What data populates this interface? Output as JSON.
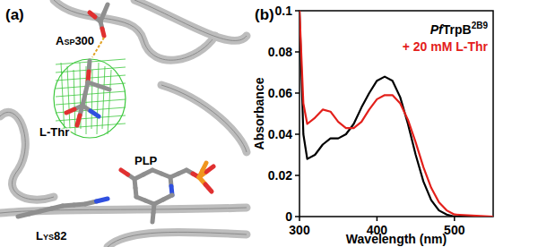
{
  "panel_a": {
    "label": "(a)",
    "residue_labels": [
      "Asp300",
      "L-Thr",
      "PLP",
      "Lys82"
    ]
  },
  "chart_data": {
    "type": "line",
    "title": "(b)",
    "x_label": "Wavelength (nm)",
    "y_label": "Absorbance",
    "x": [
      300,
      305,
      310,
      320,
      330,
      340,
      350,
      360,
      370,
      380,
      390,
      400,
      410,
      420,
      430,
      440,
      450,
      460,
      470,
      480,
      490,
      500,
      550
    ],
    "series": [
      {
        "name": "PfTrpB2B9",
        "color": "#000000",
        "values": [
          0.1,
          0.04,
          0.028,
          0.03,
          0.035,
          0.038,
          0.038,
          0.04,
          0.045,
          0.053,
          0.06,
          0.066,
          0.068,
          0.066,
          0.058,
          0.045,
          0.03,
          0.017,
          0.008,
          0.003,
          0.001,
          0,
          0
        ]
      },
      {
        "name": "+ 20 mM L-Thr",
        "color": "#e3201b",
        "values": [
          0.1,
          0.055,
          0.045,
          0.048,
          0.052,
          0.051,
          0.046,
          0.043,
          0.043,
          0.046,
          0.052,
          0.057,
          0.059,
          0.059,
          0.055,
          0.047,
          0.036,
          0.024,
          0.014,
          0.007,
          0.003,
          0.001,
          0
        ]
      }
    ],
    "xlim": [
      300,
      550
    ],
    "xticks": [
      300,
      400,
      500
    ],
    "ylim": [
      0,
      0.1
    ],
    "yticks": [
      0,
      0.02,
      0.04,
      0.06,
      0.08,
      0.1
    ],
    "grid": false,
    "legend": "upper right"
  }
}
